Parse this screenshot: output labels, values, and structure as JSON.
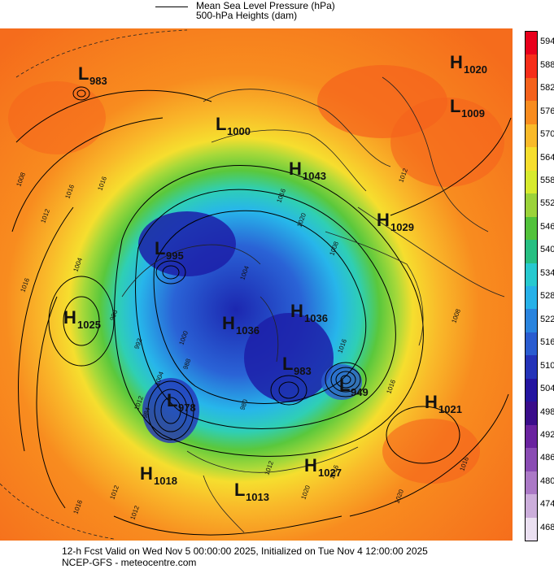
{
  "legend": {
    "mslp_label": "Mean Sea Level Pressure (hPa)",
    "heights_label": "500-hPa Heights (dam)"
  },
  "footer": {
    "line1": "12-h Fcst Valid on Wed Nov  5 00:00:00 2025, Initialized on Tue Nov  4 12:00:00 2025",
    "line2": "NCEP-GFS  -  meteocentre.com"
  },
  "colorbar": {
    "levels": [
      "594",
      "588",
      "582",
      "576",
      "570",
      "564",
      "558",
      "552",
      "546",
      "540",
      "534",
      "528",
      "522",
      "516",
      "510",
      "504",
      "498",
      "492",
      "486",
      "480",
      "474",
      "468"
    ],
    "colors": [
      "#e8001c",
      "#f62e1a",
      "#f5621c",
      "#f88c1f",
      "#f9ba2a",
      "#f6de2e",
      "#d7ea2e",
      "#9bd33a",
      "#52c23b",
      "#27bf82",
      "#27c9cf",
      "#27b1e8",
      "#2a84de",
      "#2a5cd0",
      "#2433b8",
      "#2415a0",
      "#3a0d8a",
      "#6a239f",
      "#8a4cb3",
      "#ab79c6",
      "#ccaedb",
      "#ebe0f1"
    ]
  },
  "systems": [
    {
      "type": "L",
      "value": "983"
    },
    {
      "type": "L",
      "value": "1000"
    },
    {
      "type": "H",
      "value": "1043"
    },
    {
      "type": "H",
      "value": "1020"
    },
    {
      "type": "L",
      "value": "1009"
    },
    {
      "type": "H",
      "value": "1029"
    },
    {
      "type": "L",
      "value": "995"
    },
    {
      "type": "H",
      "value": "1025"
    },
    {
      "type": "H",
      "value": "1036"
    },
    {
      "type": "H",
      "value": "1036"
    },
    {
      "type": "L",
      "value": "983"
    },
    {
      "type": "L",
      "value": "949"
    },
    {
      "type": "L",
      "value": "978"
    },
    {
      "type": "H",
      "value": "1021"
    },
    {
      "type": "H",
      "value": "1018"
    },
    {
      "type": "H",
      "value": "1027"
    },
    {
      "type": "L",
      "value": "1013"
    }
  ],
  "isobar_labels": [
    "1008",
    "1016",
    "1012",
    "1016",
    "1004",
    "1016",
    "1020",
    "1016",
    "1012",
    "1008",
    "1004",
    "1016",
    "1012",
    "1016",
    "1020",
    "1016",
    "1012",
    "1012",
    "1016",
    "1012",
    "1020",
    "1016",
    "1004",
    "1000",
    "996",
    "992",
    "988",
    "984",
    "980",
    "1008"
  ]
}
